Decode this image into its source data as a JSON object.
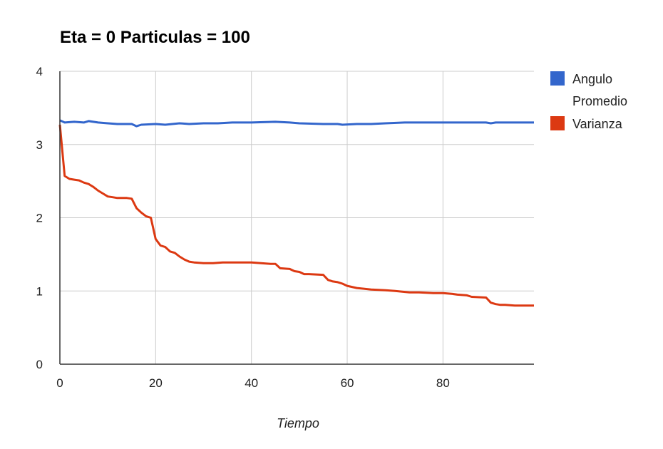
{
  "chart_data": {
    "type": "line",
    "title": "Eta = 0 Particulas = 100",
    "xlabel": "Tiempo",
    "ylabel": "",
    "xlim": [
      0,
      99
    ],
    "ylim": [
      0,
      4
    ],
    "xticks": [
      0,
      20,
      40,
      60,
      80
    ],
    "yticks": [
      0,
      1,
      2,
      3,
      4
    ],
    "grid": true,
    "legend_position": "right",
    "series": [
      {
        "name": "Angulo Promedio",
        "color": "#3366cc",
        "x": [
          0,
          1,
          3,
          5,
          6,
          8,
          10,
          12,
          14,
          15,
          16,
          17,
          20,
          22,
          25,
          27,
          30,
          33,
          36,
          40,
          45,
          48,
          50,
          55,
          58,
          59,
          62,
          65,
          68,
          72,
          75,
          80,
          85,
          89,
          90,
          91,
          95,
          99
        ],
        "y": [
          3.33,
          3.3,
          3.31,
          3.3,
          3.32,
          3.3,
          3.29,
          3.28,
          3.28,
          3.28,
          3.25,
          3.27,
          3.28,
          3.27,
          3.29,
          3.28,
          3.29,
          3.29,
          3.3,
          3.3,
          3.31,
          3.3,
          3.29,
          3.28,
          3.28,
          3.27,
          3.28,
          3.28,
          3.29,
          3.3,
          3.3,
          3.3,
          3.3,
          3.3,
          3.29,
          3.3,
          3.3,
          3.3
        ]
      },
      {
        "name": "Varianza",
        "color": "#dc3912",
        "x": [
          0,
          1,
          2,
          3,
          4,
          5,
          6,
          7,
          8,
          9,
          10,
          11,
          12,
          13,
          14,
          15,
          16,
          17,
          18,
          19,
          20,
          21,
          22,
          23,
          24,
          25,
          26,
          27,
          28,
          30,
          32,
          34,
          36,
          38,
          40,
          42,
          44,
          45,
          46,
          48,
          49,
          50,
          51,
          52,
          55,
          56,
          57,
          58,
          59,
          60,
          62,
          65,
          68,
          70,
          73,
          75,
          78,
          80,
          82,
          83,
          85,
          86,
          89,
          90,
          91,
          92,
          93,
          95,
          99
        ],
        "y": [
          3.27,
          2.57,
          2.53,
          2.52,
          2.51,
          2.48,
          2.46,
          2.42,
          2.37,
          2.33,
          2.29,
          2.28,
          2.27,
          2.27,
          2.27,
          2.26,
          2.13,
          2.07,
          2.02,
          2.0,
          1.71,
          1.62,
          1.6,
          1.54,
          1.52,
          1.47,
          1.43,
          1.4,
          1.39,
          1.38,
          1.38,
          1.39,
          1.39,
          1.39,
          1.39,
          1.38,
          1.37,
          1.37,
          1.31,
          1.3,
          1.27,
          1.26,
          1.23,
          1.23,
          1.22,
          1.15,
          1.13,
          1.12,
          1.1,
          1.07,
          1.04,
          1.02,
          1.01,
          1.0,
          0.98,
          0.98,
          0.97,
          0.97,
          0.96,
          0.95,
          0.94,
          0.92,
          0.91,
          0.84,
          0.82,
          0.81,
          0.81,
          0.8,
          0.8
        ]
      }
    ]
  }
}
